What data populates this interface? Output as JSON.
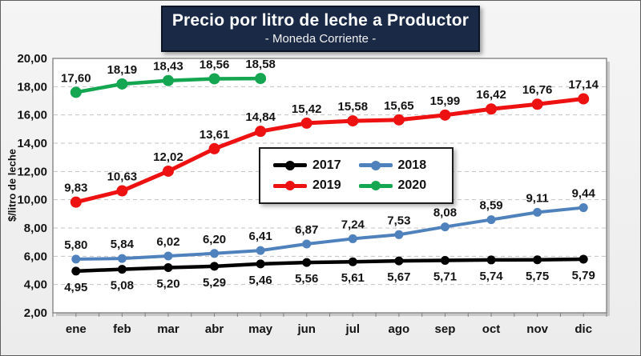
{
  "title": {
    "text": "Precio por litro de leche a Productor",
    "subtitle": "- Moneda Corriente -",
    "bg_color": "#1A2A46",
    "text_color": "#FFFFFF"
  },
  "chart_data": {
    "type": "line",
    "x": [
      "ene",
      "feb",
      "mar",
      "abr",
      "may",
      "jun",
      "jul",
      "ago",
      "sep",
      "oct",
      "nov",
      "dic"
    ],
    "ylabel": "$/litro de leche",
    "ylim": [
      2,
      20
    ],
    "yticks": [
      2,
      4,
      6,
      8,
      10,
      12,
      14,
      16,
      18,
      20
    ],
    "ytick_labels": [
      "2,00",
      "4,00",
      "6,00",
      "8,00",
      "10,00",
      "12,00",
      "14,00",
      "16,00",
      "18,00",
      "20,00"
    ],
    "grid": true,
    "legend_position": "center-right",
    "series": [
      {
        "name": "2017",
        "color": "#000000",
        "values": [
          4.95,
          5.08,
          5.2,
          5.29,
          5.46,
          5.56,
          5.61,
          5.67,
          5.71,
          5.74,
          5.75,
          5.79
        ],
        "data_labels": [
          "4,95",
          "5,08",
          "5,20",
          "5,29",
          "5,46",
          "5,56",
          "5,61",
          "5,67",
          "5,71",
          "5,74",
          "5,75",
          "5,79"
        ],
        "label_position": "below"
      },
      {
        "name": "2018",
        "color": "#4F81BD",
        "values": [
          5.8,
          5.84,
          6.02,
          6.2,
          6.41,
          6.87,
          7.24,
          7.53,
          8.08,
          8.59,
          9.11,
          9.44
        ],
        "data_labels": [
          "5,80",
          "5,84",
          "6,02",
          "6,20",
          "6,41",
          "6,87",
          "7,24",
          "7,53",
          "8,08",
          "8,59",
          "9,11",
          "9,44"
        ],
        "label_position": "above"
      },
      {
        "name": "2019",
        "color": "#EE1111",
        "values": [
          9.83,
          10.63,
          12.02,
          13.61,
          14.84,
          15.42,
          15.58,
          15.65,
          15.99,
          16.42,
          16.76,
          17.14
        ],
        "data_labels": [
          "9,83",
          "10,63",
          "12,02",
          "13,61",
          "14,84",
          "15,42",
          "15,58",
          "15,65",
          "15,99",
          "16,42",
          "16,76",
          "17,14"
        ],
        "label_position": "above"
      },
      {
        "name": "2020",
        "color": "#14A650",
        "values": [
          17.6,
          18.19,
          18.43,
          18.56,
          18.58
        ],
        "data_labels": [
          "17,60",
          "18,19",
          "18,43",
          "18,56",
          "18,58"
        ],
        "label_position": "above"
      }
    ]
  }
}
